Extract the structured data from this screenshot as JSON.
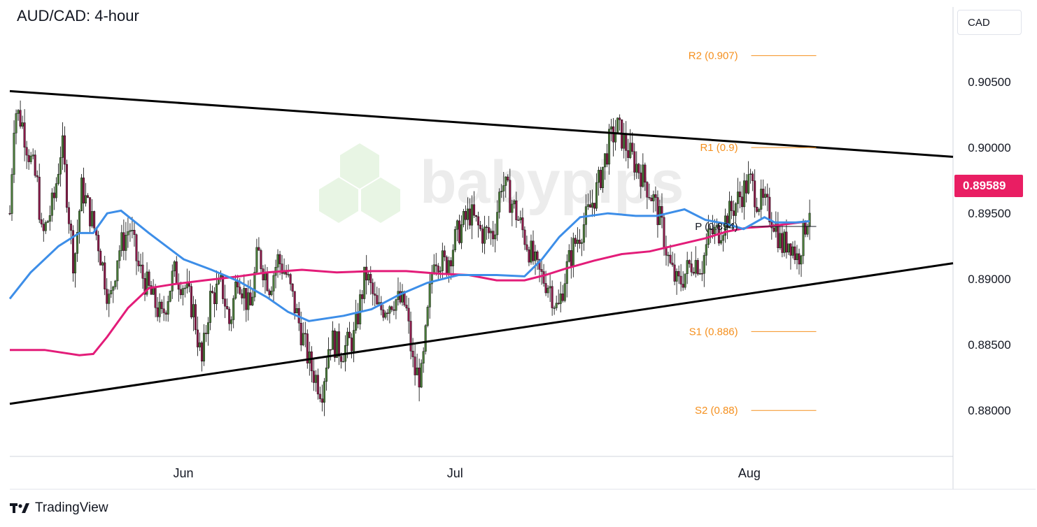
{
  "title": "AUD/CAD: 4-hour",
  "currency": "CAD",
  "current_price": "0.89589",
  "brand": "TradingView",
  "watermark": "babypips",
  "colors": {
    "bull": "#4a7c3a",
    "bear": "#8b1a4a",
    "ma_fast": "#3d8ee8",
    "ma_slow": "#e31c79",
    "pivot_levels": "#f5901e",
    "trendline": "#000000",
    "price_badge": "#e91e63"
  },
  "chart_data": {
    "type": "candlestick",
    "y_axis": {
      "ticks": [
        "0.90500",
        "0.90000",
        "0.89500",
        "0.89000",
        "0.88500",
        "0.88000"
      ],
      "tick_values": [
        0.905,
        0.9,
        0.895,
        0.89,
        0.885,
        0.88
      ],
      "range": [
        0.8765,
        0.9107
      ]
    },
    "x_axis": {
      "labels": [
        "Jun",
        "Jul",
        "Aug"
      ],
      "positions": [
        0.184,
        0.472,
        0.784
      ]
    },
    "pivot_levels": [
      {
        "label": "R2 (0.907)",
        "value": 0.907
      },
      {
        "label": "R1 (0.9)",
        "value": 0.9
      },
      {
        "label": "P (0.894)",
        "value": 0.894
      },
      {
        "label": "S1 (0.886)",
        "value": 0.886
      },
      {
        "label": "S2 (0.88)",
        "value": 0.88
      }
    ],
    "trendlines": [
      {
        "name": "upper",
        "from": [
          0.0,
          0.9043
        ],
        "to": [
          1.0,
          0.8993
        ]
      },
      {
        "name": "lower",
        "from": [
          0.0,
          0.8805
        ],
        "to": [
          1.0,
          0.8912
        ]
      }
    ],
    "close_path": [
      [
        0.0,
        0.895
      ],
      [
        0.006,
        0.903
      ],
      [
        0.015,
        0.902
      ],
      [
        0.022,
        0.9
      ],
      [
        0.035,
        0.897
      ],
      [
        0.04,
        0.893
      ],
      [
        0.055,
        0.896
      ],
      [
        0.065,
        0.9005
      ],
      [
        0.072,
        0.896
      ],
      [
        0.08,
        0.891
      ],
      [
        0.09,
        0.897
      ],
      [
        0.1,
        0.895
      ],
      [
        0.11,
        0.893
      ],
      [
        0.125,
        0.888
      ],
      [
        0.135,
        0.892
      ],
      [
        0.15,
        0.894
      ],
      [
        0.16,
        0.891
      ],
      [
        0.175,
        0.889
      ],
      [
        0.19,
        0.887
      ],
      [
        0.205,
        0.8905
      ],
      [
        0.218,
        0.8895
      ],
      [
        0.23,
        0.8875
      ],
      [
        0.24,
        0.8835
      ],
      [
        0.25,
        0.8885
      ],
      [
        0.265,
        0.8895
      ],
      [
        0.275,
        0.8865
      ],
      [
        0.285,
        0.8905
      ],
      [
        0.3,
        0.8875
      ],
      [
        0.31,
        0.892
      ],
      [
        0.325,
        0.8895
      ],
      [
        0.335,
        0.8915
      ],
      [
        0.345,
        0.8905
      ],
      [
        0.36,
        0.887
      ],
      [
        0.375,
        0.8835
      ],
      [
        0.39,
        0.8815
      ],
      [
        0.4,
        0.8855
      ],
      [
        0.415,
        0.8845
      ],
      [
        0.43,
        0.8855
      ],
      [
        0.445,
        0.8905
      ],
      [
        0.46,
        0.8875
      ],
      [
        0.48,
        0.8885
      ],
      [
        0.495,
        0.888
      ],
      [
        0.505,
        0.883
      ],
      [
        0.515,
        0.8825
      ],
      [
        0.53,
        0.892
      ],
      [
        0.545,
        0.891
      ],
      [
        0.56,
        0.8935
      ],
      [
        0.575,
        0.895
      ],
      [
        0.59,
        0.8935
      ],
      [
        0.605,
        0.8935
      ],
      [
        0.615,
        0.8975
      ],
      [
        0.63,
        0.8955
      ],
      [
        0.645,
        0.893
      ],
      [
        0.66,
        0.8905
      ],
      [
        0.675,
        0.8895
      ],
      [
        0.685,
        0.8875
      ],
      [
        0.695,
        0.8905
      ],
      [
        0.705,
        0.8925
      ],
      [
        0.72,
        0.8945
      ],
      [
        0.735,
        0.897
      ],
      [
        0.75,
        0.9005
      ],
      [
        0.76,
        0.9015
      ],
      [
        0.775,
        0.8995
      ],
      [
        0.79,
        0.898
      ],
      [
        0.805,
        0.896
      ],
      [
        0.815,
        0.894
      ],
      [
        0.825,
        0.891
      ],
      [
        0.835,
        0.8895
      ],
      [
        0.845,
        0.8905
      ],
      [
        0.855,
        0.8915
      ],
      [
        0.865,
        0.891
      ],
      [
        0.875,
        0.8935
      ],
      [
        0.885,
        0.8935
      ],
      [
        0.895,
        0.8945
      ],
      [
        0.905,
        0.8955
      ],
      [
        0.915,
        0.8965
      ],
      [
        0.925,
        0.8975
      ],
      [
        0.935,
        0.896
      ],
      [
        0.945,
        0.8955
      ],
      [
        0.955,
        0.8945
      ],
      [
        0.965,
        0.8925
      ],
      [
        0.975,
        0.893
      ],
      [
        0.985,
        0.8915
      ],
      [
        1.0,
        0.8955
      ]
    ],
    "chart_span_fraction": 0.848,
    "ma_fast": [
      [
        0.0,
        0.8885
      ],
      [
        0.03,
        0.8905
      ],
      [
        0.07,
        0.8925
      ],
      [
        0.1,
        0.8935
      ],
      [
        0.12,
        0.8935
      ],
      [
        0.14,
        0.895
      ],
      [
        0.16,
        0.8952
      ],
      [
        0.2,
        0.8935
      ],
      [
        0.25,
        0.8915
      ],
      [
        0.29,
        0.8907
      ],
      [
        0.33,
        0.8898
      ],
      [
        0.37,
        0.8886
      ],
      [
        0.4,
        0.8875
      ],
      [
        0.43,
        0.8868
      ],
      [
        0.48,
        0.8872
      ],
      [
        0.52,
        0.8877
      ],
      [
        0.56,
        0.8888
      ],
      [
        0.6,
        0.8897
      ],
      [
        0.645,
        0.8903
      ],
      [
        0.7,
        0.8903
      ],
      [
        0.74,
        0.8902
      ],
      [
        0.765,
        0.8915
      ],
      [
        0.79,
        0.8932
      ],
      [
        0.82,
        0.8947
      ],
      [
        0.86,
        0.895
      ],
      [
        0.9,
        0.8948
      ],
      [
        0.93,
        0.8948
      ],
      [
        0.97,
        0.8953
      ],
      [
        1.0,
        0.8945
      ],
      [
        1.03,
        0.8942
      ],
      [
        1.055,
        0.8938
      ],
      [
        1.085,
        0.8947
      ],
      [
        1.1,
        0.8943
      ],
      [
        1.13,
        0.8943
      ],
      [
        1.15,
        0.8944
      ]
    ],
    "ma_slow": [
      [
        0.0,
        0.8846
      ],
      [
        0.05,
        0.8846
      ],
      [
        0.1,
        0.8842
      ],
      [
        0.12,
        0.8843
      ],
      [
        0.14,
        0.8856
      ],
      [
        0.17,
        0.8878
      ],
      [
        0.2,
        0.8893
      ],
      [
        0.235,
        0.8896
      ],
      [
        0.28,
        0.8899
      ],
      [
        0.33,
        0.8902
      ],
      [
        0.37,
        0.8905
      ],
      [
        0.42,
        0.8907
      ],
      [
        0.47,
        0.8905
      ],
      [
        0.52,
        0.8906
      ],
      [
        0.57,
        0.8906
      ],
      [
        0.62,
        0.8904
      ],
      [
        0.66,
        0.8903
      ],
      [
        0.7,
        0.8899
      ],
      [
        0.74,
        0.8899
      ],
      [
        0.77,
        0.8903
      ],
      [
        0.8,
        0.8908
      ],
      [
        0.84,
        0.8914
      ],
      [
        0.88,
        0.8919
      ],
      [
        0.92,
        0.8921
      ],
      [
        0.96,
        0.8926
      ],
      [
        1.0,
        0.8931
      ],
      [
        1.03,
        0.8936
      ],
      [
        1.06,
        0.8939
      ],
      [
        1.09,
        0.894
      ],
      [
        1.12,
        0.8942
      ],
      [
        1.15,
        0.8944
      ]
    ]
  }
}
